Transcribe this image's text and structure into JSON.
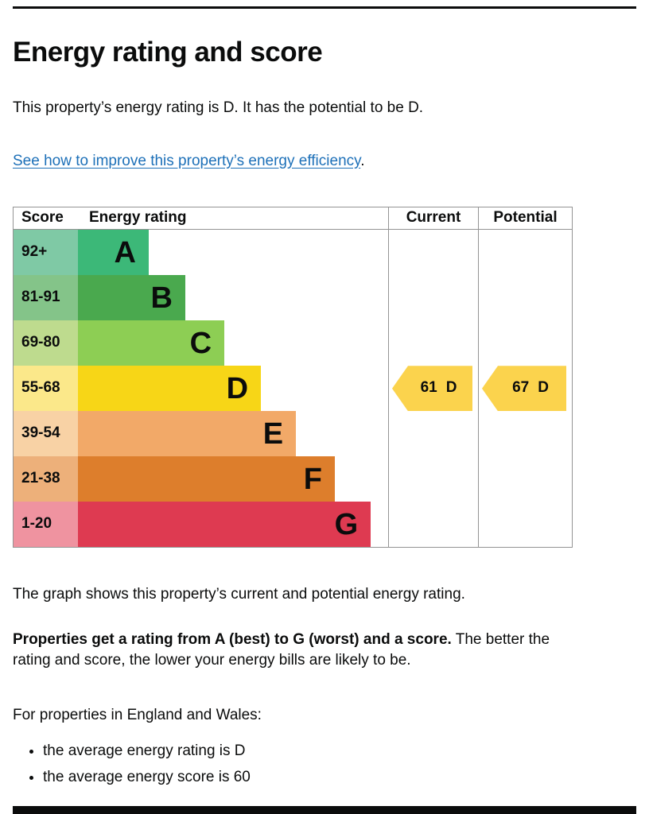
{
  "page": {
    "title": "Energy rating and score",
    "intro": "This property’s energy rating is D. It has the potential to be D.",
    "improve_link": "See how to improve this property’s energy efficiency",
    "improve_link_suffix": ".",
    "caption": "The graph shows this property’s current and potential energy rating.",
    "rating_bold": "Properties get a rating from A (best) to G (worst) and a score.",
    "rating_rest": " The better the rating and score, the lower your energy bills are likely to be.",
    "region_line": "For properties in England and Wales:",
    "bullets": [
      "the average energy rating is D",
      "the average energy score is 60"
    ],
    "link_color": "#1d70b8",
    "text_color": "#0b0c0c"
  },
  "chart": {
    "headers": {
      "score": "Score",
      "rating": "Energy rating",
      "current": "Current",
      "potential": "Potential"
    },
    "bands": [
      {
        "score": "92+",
        "letter": "A",
        "tint": "#7fc9a5",
        "color": "#3cb878",
        "width_pct": 22.8
      },
      {
        "score": "81-91",
        "letter": "B",
        "tint": "#84c489",
        "color": "#4aa94e",
        "width_pct": 34.6
      },
      {
        "score": "69-80",
        "letter": "C",
        "tint": "#bedb8e",
        "color": "#8dce54",
        "width_pct": 47.2
      },
      {
        "score": "55-68",
        "letter": "D",
        "tint": "#fbe88a",
        "color": "#f7d617",
        "width_pct": 59.0
      },
      {
        "score": "39-54",
        "letter": "E",
        "tint": "#f8d2a5",
        "color": "#f2a968",
        "width_pct": 70.3
      },
      {
        "score": "21-38",
        "letter": "F",
        "tint": "#edb07a",
        "color": "#dd7e2c",
        "width_pct": 82.8
      },
      {
        "score": "1-20",
        "letter": "G",
        "tint": "#ef93a0",
        "color": "#de3a51",
        "width_pct": 94.4
      }
    ],
    "current": {
      "score": "61",
      "letter": "D",
      "color": "#fbd34d",
      "band_index": 3
    },
    "potential": {
      "score": "67",
      "letter": "D",
      "color": "#fbd34d",
      "band_index": 3
    }
  },
  "chart_data": {
    "type": "bar",
    "title": "Energy rating and score",
    "categories": [
      "A (92+)",
      "B (81-91)",
      "C (69-80)",
      "D (55-68)",
      "E (39-54)",
      "F (21-38)",
      "G (1-20)"
    ],
    "values": [
      22.8,
      34.6,
      47.2,
      59.0,
      70.3,
      82.8,
      94.4
    ],
    "current_rating": {
      "score": 61,
      "band": "D"
    },
    "potential_rating": {
      "score": 67,
      "band": "D"
    },
    "legend_position": "none",
    "ylabel": "",
    "xlabel": ""
  }
}
